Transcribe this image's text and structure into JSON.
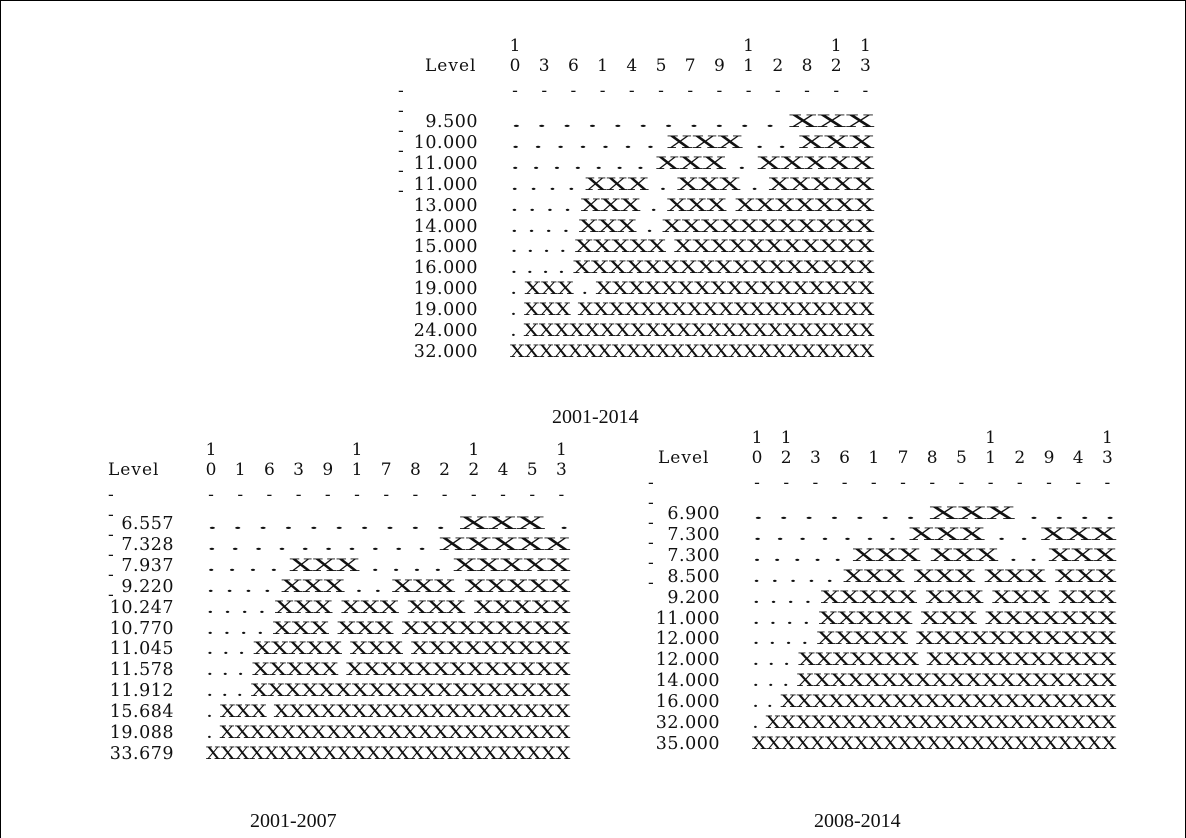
{
  "panels": [
    {
      "id": "p1",
      "caption": "2001-2014",
      "level_label": "Level",
      "level_dashes": "------",
      "cluster_labels_top": [
        "1",
        "",
        "",
        "",
        "",
        "",
        "",
        "",
        "1",
        "",
        "",
        "1",
        "1"
      ],
      "cluster_labels_bot": [
        "0",
        "3",
        "6",
        "1",
        "4",
        "5",
        "7",
        "9",
        "1",
        "2",
        "8",
        "2",
        "3"
      ],
      "rows": [
        {
          "value": "9.500",
          "pattern": ". . . . . . . . . . . XXX"
        },
        {
          "value": "10.000",
          "pattern": ". . . . . . . XXX . . XXX"
        },
        {
          "value": "11.000",
          "pattern": ". . . . . . . XXX . XXXXX"
        },
        {
          "value": "11.000",
          "pattern": ". . . . XXX . XXX . XXXXX"
        },
        {
          "value": "13.000",
          "pattern": ". . . . XXX . XXX XXXXXXX"
        },
        {
          "value": "14.000",
          "pattern": ". . . . XXX . XXXXXXXXXXX"
        },
        {
          "value": "15.000",
          "pattern": ". . . . XXXXX XXXXXXXXXXX"
        },
        {
          "value": "16.000",
          "pattern": ". . . . XXXXXXXXXXXXXXXXX"
        },
        {
          "value": "19.000",
          "pattern": ". XXX . XXXXXXXXXXXXXXXXX"
        },
        {
          "value": "19.000",
          "pattern": ". XXX XXXXXXXXXXXXXXXXXXX"
        },
        {
          "value": "24.000",
          "pattern": ". XXXXXXXXXXXXXXXXXXXXXXX"
        },
        {
          "value": "32.000",
          "pattern": "XXXXXXXXXXXXXXXXXXXXXXXXX"
        }
      ]
    },
    {
      "id": "p2",
      "caption": "2001-2007",
      "level_label": "Level",
      "level_dashes": "------",
      "cluster_labels_top": [
        "1",
        "",
        "",
        "",
        "",
        "1",
        "",
        "",
        "",
        "1",
        "",
        "",
        "1"
      ],
      "cluster_labels_bot": [
        "0",
        "1",
        "6",
        "3",
        "9",
        "1",
        "7",
        "8",
        "2",
        "2",
        "4",
        "5",
        "3"
      ],
      "rows": [
        {
          "value": "6.557",
          "pattern": ". . . . . . . . . . XXX ."
        },
        {
          "value": "7.328",
          "pattern": ". . . . . . . . . . XXXXX"
        },
        {
          "value": "7.937",
          "pattern": ". . . . XXX . . . . XXXXX"
        },
        {
          "value": "9.220",
          "pattern": ". . . . XXX . . XXX XXXXX"
        },
        {
          "value": "10.247",
          "pattern": ". . . . XXX XXX XXX XXXXX"
        },
        {
          "value": "10.770",
          "pattern": ". . . . XXX XXX XXXXXXXXX"
        },
        {
          "value": "11.045",
          "pattern": ". . . XXXXX XXX XXXXXXXXX"
        },
        {
          "value": "11.578",
          "pattern": ". . . XXXXX XXXXXXXXXXXXX"
        },
        {
          "value": "11.912",
          "pattern": ". . . XXXXXXXXXXXXXXXXXXX"
        },
        {
          "value": "15.684",
          "pattern": ". XXX XXXXXXXXXXXXXXXXXXX"
        },
        {
          "value": "19.088",
          "pattern": ". XXXXXXXXXXXXXXXXXXXXXXX"
        },
        {
          "value": "33.679",
          "pattern": "XXXXXXXXXXXXXXXXXXXXXXXXX"
        }
      ]
    },
    {
      "id": "p3",
      "caption": "2008-2014",
      "level_label": "Level",
      "level_dashes": "------",
      "cluster_labels_top": [
        "1",
        "1",
        "",
        "",
        "",
        "",
        "",
        "",
        "1",
        "",
        "",
        "",
        "1"
      ],
      "cluster_labels_bot": [
        "0",
        "2",
        "3",
        "6",
        "1",
        "7",
        "8",
        "5",
        "1",
        "2",
        "9",
        "4",
        "3"
      ],
      "rows": [
        {
          "value": "6.900",
          "pattern": ". . . . . . . XXX . . . ."
        },
        {
          "value": "7.300",
          "pattern": ". . . . . . . XXX . . XXX"
        },
        {
          "value": "7.300",
          "pattern": ". . . . . XXX XXX . . XXX"
        },
        {
          "value": "8.500",
          "pattern": ". . . . . XXX XXX XXX XXX"
        },
        {
          "value": "9.200",
          "pattern": ". . . . XXXXX XXX XXX XXX"
        },
        {
          "value": "11.000",
          "pattern": ". . . . XXXXX XXX XXXXXXX"
        },
        {
          "value": "12.000",
          "pattern": ". . . . XXXXX XXXXXXXXXXX"
        },
        {
          "value": "12.000",
          "pattern": ". . . XXXXXXX XXXXXXXXXXX"
        },
        {
          "value": "14.000",
          "pattern": ". . . XXXXXXXXXXXXXXXXXXX"
        },
        {
          "value": "16.000",
          "pattern": ". . XXXXXXXXXXXXXXXXXXXXX"
        },
        {
          "value": "32.000",
          "pattern": ". XXXXXXXXXXXXXXXXXXXXXXX"
        },
        {
          "value": "35.000",
          "pattern": "XXXXXXXXXXXXXXXXXXXXXXXXX"
        }
      ]
    }
  ]
}
